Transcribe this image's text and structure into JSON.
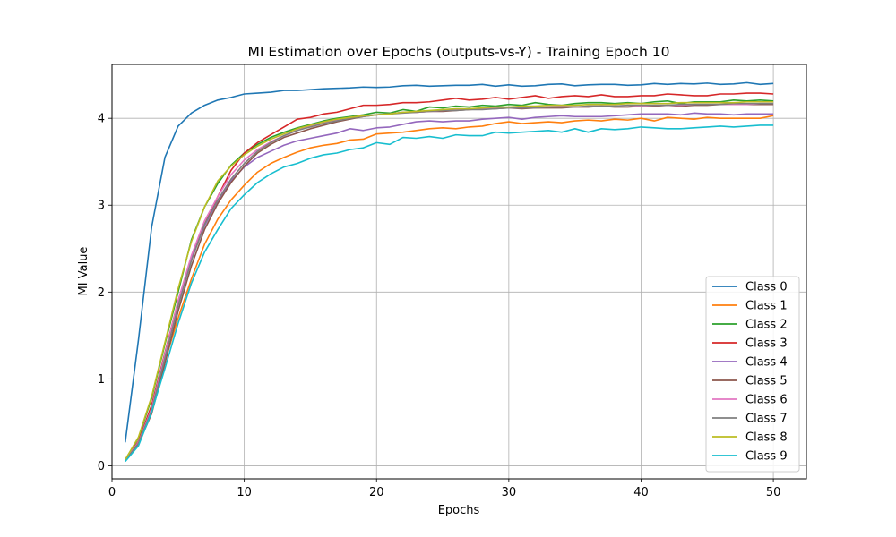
{
  "chart_data": {
    "type": "line",
    "title": "MI Estimation over Epochs (outputs-vs-Y) - Training Epoch 10",
    "xlabel": "Epochs",
    "ylabel": "MI Value",
    "xlim": [
      0,
      52.5
    ],
    "ylim": [
      -0.15,
      4.62
    ],
    "xticks": [
      0,
      10,
      20,
      30,
      40,
      50
    ],
    "yticks": [
      0,
      1,
      2,
      3,
      4
    ],
    "grid": true,
    "legend_position": "lower-right",
    "x": [
      1,
      2,
      3,
      4,
      5,
      6,
      7,
      8,
      9,
      10,
      11,
      12,
      13,
      14,
      15,
      16,
      17,
      18,
      19,
      20,
      21,
      22,
      23,
      24,
      25,
      26,
      27,
      28,
      29,
      30,
      31,
      32,
      33,
      34,
      35,
      36,
      37,
      38,
      39,
      40,
      41,
      42,
      43,
      44,
      45,
      46,
      47,
      48,
      49,
      50
    ],
    "series": [
      {
        "name": "Class 0",
        "color": "#1f77b4",
        "values": [
          0.27,
          1.45,
          2.75,
          3.55,
          3.91,
          4.06,
          4.15,
          4.21,
          4.24,
          4.28,
          4.29,
          4.3,
          4.32,
          4.32,
          4.33,
          4.34,
          4.345,
          4.35,
          4.36,
          4.355,
          4.36,
          4.375,
          4.38,
          4.37,
          4.375,
          4.38,
          4.38,
          4.39,
          4.37,
          4.385,
          4.37,
          4.375,
          4.39,
          4.395,
          4.375,
          4.385,
          4.39,
          4.39,
          4.38,
          4.385,
          4.4,
          4.39,
          4.4,
          4.395,
          4.405,
          4.39,
          4.395,
          4.41,
          4.39,
          4.4
        ]
      },
      {
        "name": "Class 1",
        "color": "#ff7f0e",
        "values": [
          0.06,
          0.28,
          0.68,
          1.2,
          1.7,
          2.15,
          2.55,
          2.84,
          3.06,
          3.23,
          3.38,
          3.48,
          3.55,
          3.61,
          3.66,
          3.69,
          3.71,
          3.75,
          3.76,
          3.82,
          3.83,
          3.84,
          3.86,
          3.88,
          3.89,
          3.88,
          3.9,
          3.91,
          3.94,
          3.96,
          3.94,
          3.95,
          3.96,
          3.95,
          3.97,
          3.98,
          3.97,
          3.99,
          3.98,
          4.0,
          3.97,
          4.01,
          4.0,
          3.99,
          4.01,
          4.0,
          4.0,
          4.0,
          4.0,
          4.03
        ]
      },
      {
        "name": "Class 2",
        "color": "#2ca02c",
        "values": [
          0.07,
          0.32,
          0.78,
          1.4,
          2.0,
          2.6,
          2.98,
          3.25,
          3.46,
          3.6,
          3.7,
          3.78,
          3.84,
          3.89,
          3.93,
          3.97,
          4.0,
          4.02,
          4.04,
          4.07,
          4.06,
          4.1,
          4.08,
          4.13,
          4.12,
          4.14,
          4.13,
          4.15,
          4.14,
          4.16,
          4.15,
          4.18,
          4.16,
          4.15,
          4.17,
          4.18,
          4.18,
          4.17,
          4.18,
          4.17,
          4.19,
          4.2,
          4.17,
          4.19,
          4.19,
          4.19,
          4.21,
          4.2,
          4.21,
          4.2
        ]
      },
      {
        "name": "Class 3",
        "color": "#d62728",
        "values": [
          0.07,
          0.28,
          0.7,
          1.3,
          1.9,
          2.4,
          2.78,
          3.1,
          3.4,
          3.6,
          3.72,
          3.81,
          3.9,
          3.99,
          4.01,
          4.05,
          4.07,
          4.11,
          4.15,
          4.15,
          4.16,
          4.18,
          4.18,
          4.19,
          4.21,
          4.23,
          4.21,
          4.22,
          4.24,
          4.22,
          4.24,
          4.26,
          4.23,
          4.25,
          4.26,
          4.25,
          4.27,
          4.25,
          4.25,
          4.26,
          4.26,
          4.28,
          4.27,
          4.26,
          4.26,
          4.28,
          4.28,
          4.29,
          4.29,
          4.28
        ]
      },
      {
        "name": "Class 4",
        "color": "#9467bd",
        "values": [
          0.06,
          0.27,
          0.66,
          1.28,
          1.86,
          2.38,
          2.76,
          3.05,
          3.28,
          3.44,
          3.55,
          3.62,
          3.69,
          3.74,
          3.77,
          3.8,
          3.83,
          3.88,
          3.86,
          3.89,
          3.9,
          3.93,
          3.96,
          3.97,
          3.96,
          3.97,
          3.97,
          3.99,
          4.0,
          4.01,
          3.99,
          4.01,
          4.02,
          4.03,
          4.02,
          4.02,
          4.02,
          4.03,
          4.04,
          4.05,
          4.05,
          4.05,
          4.04,
          4.06,
          4.05,
          4.05,
          4.04,
          4.05,
          4.05,
          4.05
        ]
      },
      {
        "name": "Class 5",
        "color": "#8c564b",
        "values": [
          0.06,
          0.25,
          0.6,
          1.18,
          1.78,
          2.3,
          2.72,
          3.02,
          3.26,
          3.45,
          3.6,
          3.7,
          3.78,
          3.83,
          3.88,
          3.92,
          3.96,
          3.99,
          4.02,
          4.04,
          4.05,
          4.07,
          4.07,
          4.08,
          4.08,
          4.09,
          4.1,
          4.11,
          4.11,
          4.12,
          4.11,
          4.12,
          4.12,
          4.12,
          4.13,
          4.13,
          4.14,
          4.13,
          4.13,
          4.14,
          4.14,
          4.15,
          4.14,
          4.15,
          4.15,
          4.16,
          4.16,
          4.16,
          4.16,
          4.16
        ]
      },
      {
        "name": "Class 6",
        "color": "#e377c2",
        "values": [
          0.07,
          0.27,
          0.66,
          1.28,
          1.9,
          2.42,
          2.82,
          3.1,
          3.35,
          3.52,
          3.64,
          3.73,
          3.8,
          3.86,
          3.91,
          3.95,
          3.98,
          4.01,
          4.03,
          4.04,
          4.05,
          4.07,
          4.07,
          4.08,
          4.09,
          4.1,
          4.11,
          4.11,
          4.12,
          4.12,
          4.12,
          4.13,
          4.13,
          4.14,
          4.13,
          4.14,
          4.14,
          4.14,
          4.15,
          4.14,
          4.15,
          4.15,
          4.15,
          4.16,
          4.16,
          4.16,
          4.16,
          4.16,
          4.17,
          4.17
        ]
      },
      {
        "name": "Class 7",
        "color": "#7f7f7f",
        "values": [
          0.06,
          0.26,
          0.64,
          1.24,
          1.84,
          2.36,
          2.78,
          3.06,
          3.3,
          3.48,
          3.62,
          3.72,
          3.8,
          3.86,
          3.9,
          3.94,
          3.97,
          4.0,
          4.02,
          4.04,
          4.05,
          4.06,
          4.07,
          4.08,
          4.09,
          4.09,
          4.1,
          4.1,
          4.11,
          4.12,
          4.12,
          4.12,
          4.13,
          4.13,
          4.13,
          4.14,
          4.14,
          4.14,
          4.15,
          4.15,
          4.15,
          4.15,
          4.16,
          4.16,
          4.16,
          4.16,
          4.17,
          4.17,
          4.17,
          4.17
        ]
      },
      {
        "name": "Class 8",
        "color": "#bcbd22",
        "values": [
          0.07,
          0.33,
          0.8,
          1.42,
          2.04,
          2.58,
          2.98,
          3.28,
          3.45,
          3.58,
          3.68,
          3.76,
          3.82,
          3.88,
          3.92,
          3.96,
          3.99,
          4.01,
          4.03,
          4.04,
          4.05,
          4.07,
          4.08,
          4.09,
          4.1,
          4.11,
          4.11,
          4.12,
          4.13,
          4.13,
          4.14,
          4.14,
          4.15,
          4.15,
          4.15,
          4.16,
          4.16,
          4.16,
          4.17,
          4.17,
          4.17,
          4.17,
          4.18,
          4.18,
          4.18,
          4.18,
          4.18,
          4.19,
          4.19,
          4.19
        ]
      },
      {
        "name": "Class 9",
        "color": "#17becf",
        "values": [
          0.05,
          0.23,
          0.62,
          1.12,
          1.64,
          2.1,
          2.46,
          2.72,
          2.96,
          3.12,
          3.26,
          3.36,
          3.44,
          3.48,
          3.54,
          3.58,
          3.6,
          3.64,
          3.66,
          3.72,
          3.7,
          3.78,
          3.77,
          3.79,
          3.77,
          3.81,
          3.8,
          3.8,
          3.84,
          3.83,
          3.84,
          3.85,
          3.86,
          3.84,
          3.88,
          3.84,
          3.88,
          3.87,
          3.88,
          3.9,
          3.89,
          3.88,
          3.88,
          3.89,
          3.9,
          3.91,
          3.9,
          3.91,
          3.92,
          3.92
        ]
      }
    ]
  }
}
